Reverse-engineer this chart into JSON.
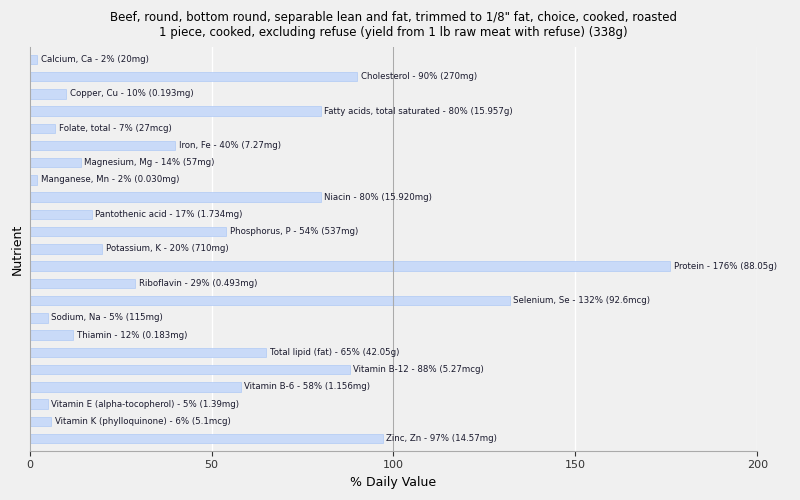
{
  "title": "Beef, round, bottom round, separable lean and fat, trimmed to 1/8\" fat, choice, cooked, roasted\n1 piece, cooked, excluding refuse (yield from 1 lb raw meat with refuse) (338g)",
  "xlabel": "% Daily Value",
  "ylabel": "Nutrient",
  "xlim": [
    0,
    200
  ],
  "xticks": [
    0,
    50,
    100,
    150,
    200
  ],
  "bar_color": "#c9daf8",
  "bar_edge_color": "#a4c2f4",
  "background_color": "#f0f0f0",
  "plot_bg_color": "#f0f0f0",
  "nutrients": [
    {
      "label": "Calcium, Ca - 2% (20mg)",
      "value": 2
    },
    {
      "label": "Cholesterol - 90% (270mg)",
      "value": 90
    },
    {
      "label": "Copper, Cu - 10% (0.193mg)",
      "value": 10
    },
    {
      "label": "Fatty acids, total saturated - 80% (15.957g)",
      "value": 80
    },
    {
      "label": "Folate, total - 7% (27mcg)",
      "value": 7
    },
    {
      "label": "Iron, Fe - 40% (7.27mg)",
      "value": 40
    },
    {
      "label": "Magnesium, Mg - 14% (57mg)",
      "value": 14
    },
    {
      "label": "Manganese, Mn - 2% (0.030mg)",
      "value": 2
    },
    {
      "label": "Niacin - 80% (15.920mg)",
      "value": 80
    },
    {
      "label": "Pantothenic acid - 17% (1.734mg)",
      "value": 17
    },
    {
      "label": "Phosphorus, P - 54% (537mg)",
      "value": 54
    },
    {
      "label": "Potassium, K - 20% (710mg)",
      "value": 20
    },
    {
      "label": "Protein - 176% (88.05g)",
      "value": 176
    },
    {
      "label": "Riboflavin - 29% (0.493mg)",
      "value": 29
    },
    {
      "label": "Selenium, Se - 132% (92.6mcg)",
      "value": 132
    },
    {
      "label": "Sodium, Na - 5% (115mg)",
      "value": 5
    },
    {
      "label": "Thiamin - 12% (0.183mg)",
      "value": 12
    },
    {
      "label": "Total lipid (fat) - 65% (42.05g)",
      "value": 65
    },
    {
      "label": "Vitamin B-12 - 88% (5.27mcg)",
      "value": 88
    },
    {
      "label": "Vitamin B-6 - 58% (1.156mg)",
      "value": 58
    },
    {
      "label": "Vitamin E (alpha-tocopherol) - 5% (1.39mg)",
      "value": 5
    },
    {
      "label": "Vitamin K (phylloquinone) - 6% (5.1mcg)",
      "value": 6
    },
    {
      "label": "Zinc, Zn - 97% (14.57mg)",
      "value": 97
    }
  ]
}
